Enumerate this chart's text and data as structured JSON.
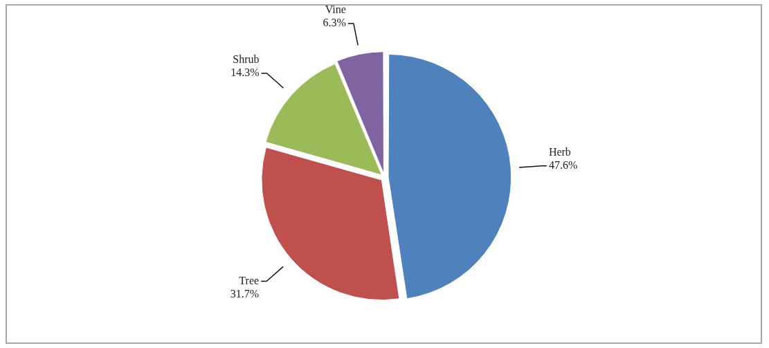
{
  "chart_data": {
    "type": "pie",
    "categories": [
      "Herb",
      "Tree",
      "Shrub",
      "Vine"
    ],
    "values": [
      47.6,
      31.7,
      14.3,
      6.3
    ],
    "colors": [
      "#4f81bd",
      "#c0504d",
      "#9bbb59",
      "#8064a2"
    ],
    "value_labels": [
      "47.6%",
      "31.7%",
      "14.3%",
      "6.3%"
    ]
  }
}
